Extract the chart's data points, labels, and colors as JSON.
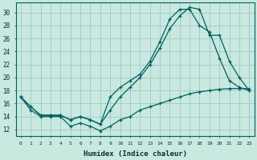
{
  "xlabel": "Humidex (Indice chaleur)",
  "background_color": "#c8e8e0",
  "grid_color": "#a0c8c0",
  "line_color": "#006060",
  "x_ticks": [
    0,
    1,
    2,
    3,
    4,
    5,
    6,
    7,
    8,
    9,
    10,
    11,
    12,
    13,
    14,
    15,
    16,
    17,
    18,
    19,
    20,
    21,
    22,
    23
  ],
  "y_ticks": [
    12,
    14,
    16,
    18,
    20,
    22,
    24,
    26,
    28,
    30
  ],
  "xlim": [
    -0.5,
    23.5
  ],
  "ylim": [
    11.0,
    31.5
  ],
  "series1_x": [
    0,
    1,
    2,
    3,
    4,
    5,
    6,
    7,
    8,
    9,
    10,
    11,
    12,
    13,
    14,
    15,
    16,
    17,
    18,
    19,
    20,
    21,
    22,
    23
  ],
  "series1_y": [
    17.0,
    15.0,
    14.0,
    14.0,
    14.0,
    12.5,
    13.0,
    12.5,
    11.8,
    12.5,
    13.5,
    14.0,
    15.0,
    15.5,
    16.0,
    16.5,
    17.0,
    17.5,
    17.8,
    18.0,
    18.2,
    18.3,
    18.3,
    18.3
  ],
  "series2_x": [
    0,
    1,
    2,
    3,
    4,
    5,
    6,
    7,
    8,
    9,
    10,
    11,
    12,
    13,
    14,
    15,
    16,
    17,
    18,
    19,
    20,
    21,
    22,
    23
  ],
  "series2_y": [
    17.0,
    15.5,
    14.2,
    14.2,
    14.2,
    13.5,
    14.0,
    13.5,
    12.8,
    17.0,
    18.5,
    19.5,
    20.5,
    22.5,
    25.5,
    29.0,
    30.5,
    30.5,
    28.0,
    27.0,
    23.0,
    19.5,
    18.5,
    18.0
  ],
  "series3_x": [
    0,
    1,
    2,
    3,
    4,
    5,
    6,
    7,
    8,
    9,
    10,
    11,
    12,
    13,
    14,
    15,
    16,
    17,
    18,
    19,
    20,
    21,
    22,
    23
  ],
  "series3_y": [
    17.0,
    15.5,
    14.2,
    14.2,
    14.2,
    13.5,
    14.0,
    13.5,
    12.8,
    15.0,
    17.0,
    18.5,
    20.0,
    22.0,
    24.5,
    27.5,
    29.5,
    30.8,
    30.5,
    26.5,
    26.5,
    22.5,
    20.0,
    18.0
  ]
}
